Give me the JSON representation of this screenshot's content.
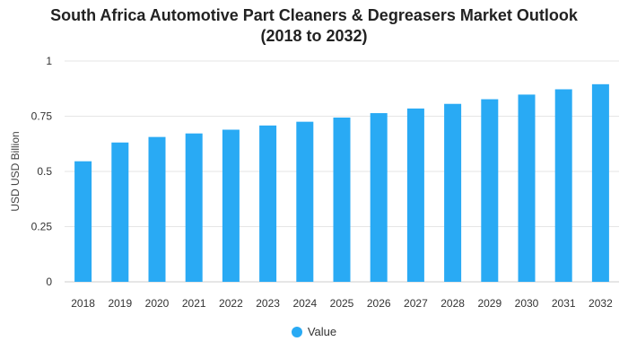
{
  "chart_data": {
    "type": "bar",
    "title_line1": "South Africa Automotive Part Cleaners & Degreasers Market Outlook",
    "title_line2": "(2018 to 2032)",
    "xlabel": "",
    "ylabel": "USD USD Billion",
    "ylim": [
      0,
      1
    ],
    "yticks": [
      0,
      0.25,
      0.5,
      0.75,
      1
    ],
    "ytick_labels": [
      "0",
      "0.25",
      "0.5",
      "0.75",
      "1"
    ],
    "grid": true,
    "legend_position": "bottom",
    "categories": [
      "2018",
      "2019",
      "2020",
      "2021",
      "2022",
      "2023",
      "2024",
      "2025",
      "2026",
      "2027",
      "2028",
      "2029",
      "2030",
      "2031",
      "2032"
    ],
    "series": [
      {
        "name": "Value",
        "color": "#29aaf4",
        "values": [
          0.546,
          0.631,
          0.656,
          0.672,
          0.689,
          0.708,
          0.725,
          0.744,
          0.764,
          0.785,
          0.806,
          0.827,
          0.848,
          0.872,
          0.895
        ]
      }
    ]
  }
}
